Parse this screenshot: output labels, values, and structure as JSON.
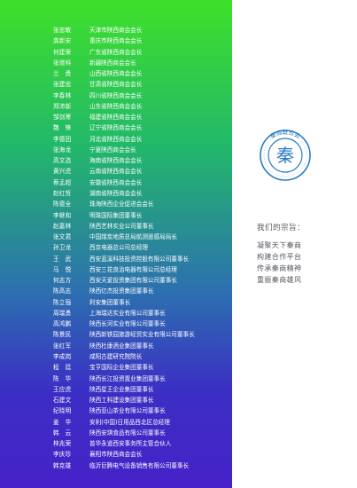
{
  "roster": [
    {
      "name": "张忠敏",
      "title": "天津市陕西商会会长"
    },
    {
      "name": "龚新安",
      "title": "重庆市陕西商会会长"
    },
    {
      "name": "何建荣",
      "title": "广东省陕西商会会长"
    },
    {
      "name": "张增科",
      "title": "新疆陕西商会会长"
    },
    {
      "name": "兰　勇",
      "title": "山西省陕西商会会长"
    },
    {
      "name": "张建忠",
      "title": "甘肃省陕西商会会长"
    },
    {
      "name": "李春林",
      "title": "四川省陕西商会会长"
    },
    {
      "name": "郑沛新",
      "title": "山东省陕西商会会长"
    },
    {
      "name": "邹剑寒",
      "title": "福建省陕西商会会长"
    },
    {
      "name": "魏　锋",
      "title": "辽宁省陕西商会会长"
    },
    {
      "name": "李德团",
      "title": "河北省陕西商会会长"
    },
    {
      "name": "张海龙",
      "title": "宁夏陕西商会会长"
    },
    {
      "name": "高文选",
      "title": "海南省陕西商会会长"
    },
    {
      "name": "黄兴虎",
      "title": "云南省陕西商会会长"
    },
    {
      "name": "蔡孟超",
      "title": "安徽省陕西商会会长"
    },
    {
      "name": "赵红哲",
      "title": "湖南省陕西商会会长"
    },
    {
      "name": "陈德全",
      "title": "珠海陕西企业促进会会长"
    },
    {
      "name": "李继和",
      "title": "明珠国际集团董事长"
    },
    {
      "name": "赵嘉林",
      "title": "陕西艺林实业公司董事长"
    },
    {
      "name": "张文君",
      "title": "中国煤炭地质总局航测遥感局局长"
    },
    {
      "name": "孙卫龙",
      "title": "西京电器总公司总经理"
    },
    {
      "name": "王　武",
      "title": "西安蓝溪科技投资控股有限公司董事长"
    },
    {
      "name": "马　悦",
      "title": "西安三花良治电器有限公司总经理"
    },
    {
      "name": "何志方",
      "title": "西安天爱投资集团有限公司董事长"
    },
    {
      "name": "陈高志",
      "title": "陕西亿杰投资集团董事长"
    },
    {
      "name": "陈立强",
      "title": "利安集团董事长"
    },
    {
      "name": "周瑞勇",
      "title": "上海瑞达实业有限公司董事长"
    },
    {
      "name": "高鸿鹏",
      "title": "陕西长河实业有限公司董事长"
    },
    {
      "name": "陈景民",
      "title": "陕西新铁园旅游经贸实业有限公司董事长"
    },
    {
      "name": "张红军",
      "title": "陕西杜康酒业集团董事长"
    },
    {
      "name": "李成岗",
      "title": "咸阳古建研究院院长"
    },
    {
      "name": "程　廷",
      "title": "宝亨国际企业集团董事长"
    },
    {
      "name": "陈　华",
      "title": "陕西长江投资置业集团董事长"
    },
    {
      "name": "王应虎",
      "title": "陕西星王企业集团董事长"
    },
    {
      "name": "石建文",
      "title": "陕西工科建设集团董事长"
    },
    {
      "name": "纪晓明",
      "title": "陕西亚山茶业有限公司董事长"
    },
    {
      "name": "姜　华",
      "title": "安利(中国)日用品西北区总经理"
    },
    {
      "name": "韩　云",
      "title": "陕西安琪食品有限公司董事长"
    },
    {
      "name": "林兆荣",
      "title": "普华永道西安事务所主管合伙人"
    },
    {
      "name": "李庆珍",
      "title": "襄阳市陕西商会会长"
    },
    {
      "name": "韩克雄",
      "title": "临沂巨腾电气设备销售有限公司董事长"
    }
  ],
  "logo": {
    "center_text": "秦",
    "ring_text": "秦商联合会",
    "accent": "#2a7bc4"
  },
  "creed": {
    "heading": "我们的宗旨：",
    "lines": [
      "凝聚天下秦商",
      "构建合作平台",
      "传承秦商精神",
      "重振秦商雄风"
    ]
  }
}
